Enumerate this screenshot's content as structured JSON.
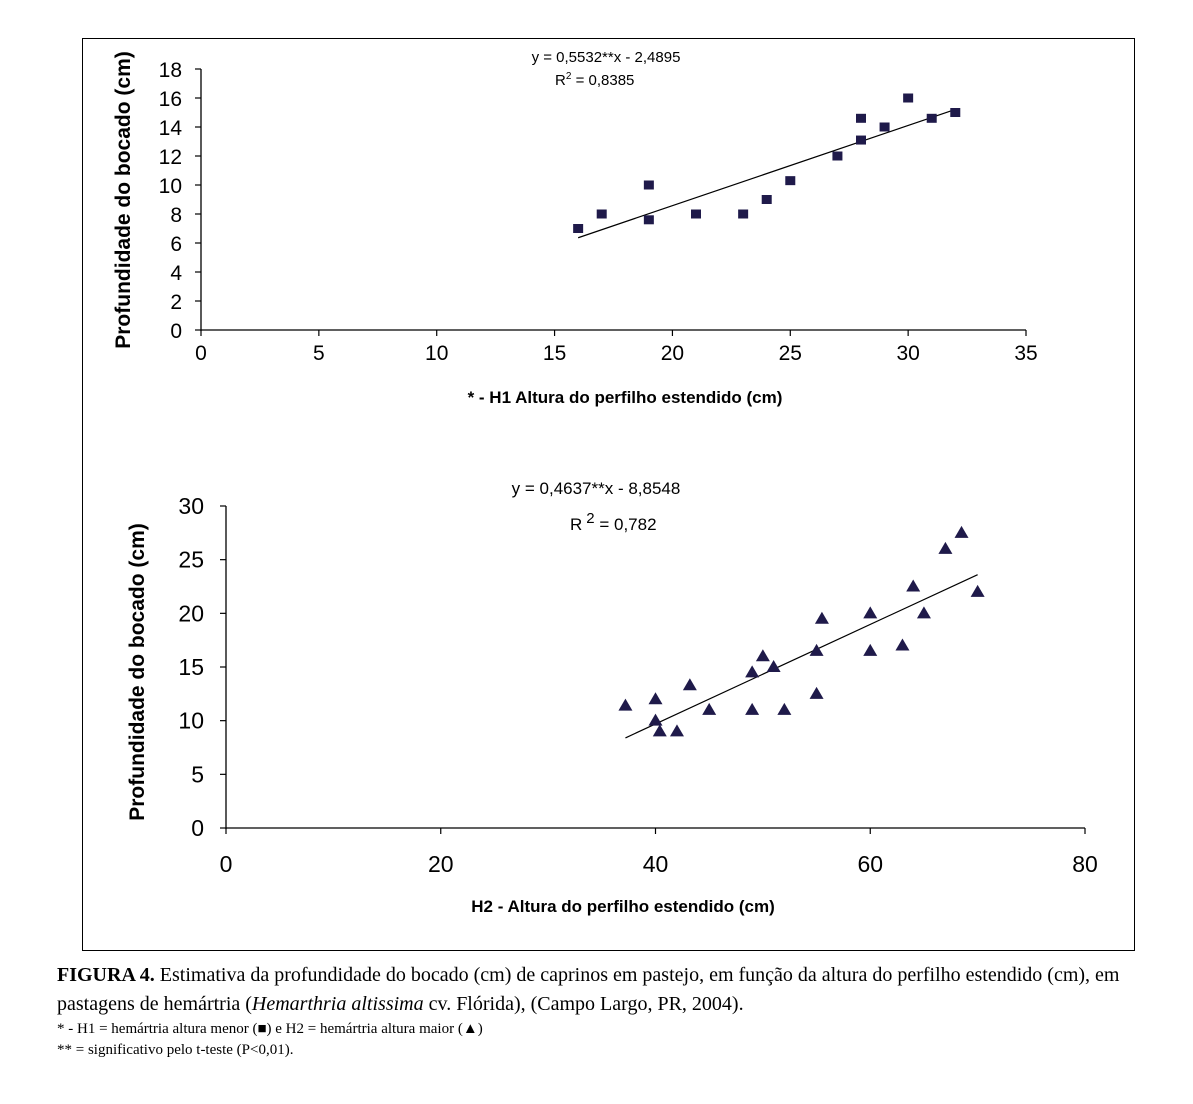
{
  "chart_data": [
    {
      "type": "scatter",
      "name": "H1",
      "equation": "y = 0,5532**x - 2,4895",
      "r2_label": "R",
      "r2_sup": "2",
      "r2_value": " = 0,8385",
      "xlabel": "* -  H1   Altura do perfilho estendido (cm)",
      "ylabel": "Profundidade do bocado (cm)",
      "xlim": [
        0,
        35
      ],
      "ylim": [
        0,
        18
      ],
      "xticks": [
        0,
        5,
        10,
        15,
        20,
        25,
        30,
        35
      ],
      "yticks": [
        0,
        2,
        4,
        6,
        8,
        10,
        12,
        14,
        16,
        18
      ],
      "marker": "square",
      "marker_color": "#1f1a4a",
      "grid": false,
      "trend": {
        "slope": 0.5532,
        "intercept": -2.4895,
        "x_range": [
          16,
          32
        ]
      },
      "points": [
        {
          "x": 16,
          "y": 7.0
        },
        {
          "x": 17,
          "y": 8.0
        },
        {
          "x": 19,
          "y": 10.0
        },
        {
          "x": 19,
          "y": 7.6
        },
        {
          "x": 21,
          "y": 8.0
        },
        {
          "x": 23,
          "y": 8.0
        },
        {
          "x": 24,
          "y": 9.0
        },
        {
          "x": 25,
          "y": 10.3
        },
        {
          "x": 27,
          "y": 12.0
        },
        {
          "x": 28,
          "y": 14.6
        },
        {
          "x": 28,
          "y": 13.1
        },
        {
          "x": 29,
          "y": 14.0
        },
        {
          "x": 30,
          "y": 16.0
        },
        {
          "x": 31,
          "y": 14.6
        },
        {
          "x": 32,
          "y": 15.0
        }
      ]
    },
    {
      "type": "scatter",
      "name": "H2",
      "equation": "y = 0,4637**x - 8,8548",
      "r2_label": "R",
      "r2_sup": "2",
      "r2_value": " = 0,782",
      "xlabel": "H2 - Altura do perfilho estendido (cm)",
      "ylabel": "Profundidade do bocado (cm)",
      "xlim": [
        0,
        80
      ],
      "ylim": [
        0,
        30
      ],
      "xticks": [
        0,
        20,
        40,
        60,
        80
      ],
      "yticks": [
        0,
        5,
        10,
        15,
        20,
        25,
        30
      ],
      "marker": "triangle",
      "marker_color": "#1f1a4a",
      "grid": false,
      "trend": {
        "slope": 0.4637,
        "intercept": -8.8548,
        "x_range": [
          37.2,
          70
        ]
      },
      "points": [
        {
          "x": 37.2,
          "y": 11.4
        },
        {
          "x": 40,
          "y": 12.0
        },
        {
          "x": 40,
          "y": 10.0
        },
        {
          "x": 40.4,
          "y": 9.0
        },
        {
          "x": 42,
          "y": 9.0
        },
        {
          "x": 43.2,
          "y": 13.3
        },
        {
          "x": 45,
          "y": 11.0
        },
        {
          "x": 49,
          "y": 14.5
        },
        {
          "x": 49,
          "y": 11.0
        },
        {
          "x": 50,
          "y": 16.0
        },
        {
          "x": 51,
          "y": 15.0
        },
        {
          "x": 52,
          "y": 11.0
        },
        {
          "x": 55,
          "y": 16.5
        },
        {
          "x": 55,
          "y": 12.5
        },
        {
          "x": 55.5,
          "y": 19.5
        },
        {
          "x": 60,
          "y": 20.0
        },
        {
          "x": 60,
          "y": 16.5
        },
        {
          "x": 63,
          "y": 17.0
        },
        {
          "x": 64,
          "y": 22.5
        },
        {
          "x": 65,
          "y": 20.0
        },
        {
          "x": 67,
          "y": 26.0
        },
        {
          "x": 68.5,
          "y": 27.5
        },
        {
          "x": 70,
          "y": 22.0
        }
      ]
    }
  ],
  "caption": {
    "figure_label": "FIGURA 4.",
    "text_1": " Estimativa da profundidade do bocado (cm) de caprinos em pastejo, em função da altura do perfilho estendido (cm), em pastagens de hemártria (",
    "species_italic": "Hemarthria altissima",
    "text_2": " cv. Flórida), (Campo Largo, PR, 2004).",
    "note_1_a": "* - H1 = hemártria altura menor (",
    "note_1_square": "■",
    "note_1_b": ") e H2 = hemártria altura maior (",
    "note_1_triangle": "▲",
    "note_1_c": ")",
    "note_2": "** = significativo pelo t-teste (P<0,01)."
  }
}
